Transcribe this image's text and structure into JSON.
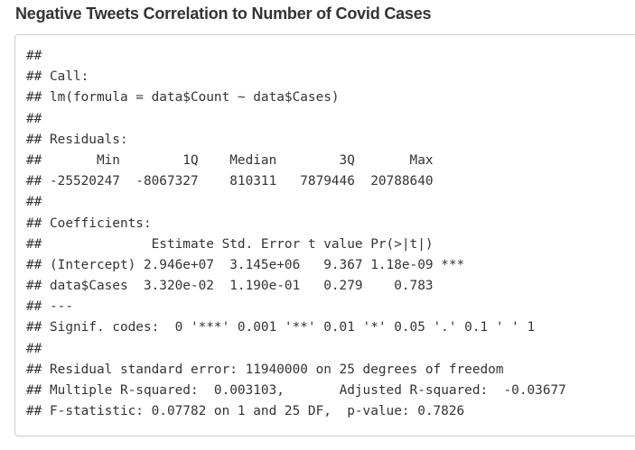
{
  "title": "Negative Tweets Correlation to Number of Covid Cases",
  "output_lines": [
    "##",
    "## Call:",
    "## lm(formula = data$Count ~ data$Cases)",
    "##",
    "## Residuals:",
    "##       Min        1Q    Median        3Q       Max",
    "## -25520247  -8067327    810311   7879446  20788640",
    "##",
    "## Coefficients:",
    "##              Estimate Std. Error t value Pr(>|t|)",
    "## (Intercept) 2.946e+07  3.145e+06   9.367 1.18e-09 ***",
    "## data$Cases  3.320e-02  1.190e-01   0.279    0.783",
    "## ---",
    "## Signif. codes:  0 '***' 0.001 '**' 0.01 '*' 0.05 '.' 0.1 ' ' 1",
    "##",
    "## Residual standard error: 11940000 on 25 degrees of freedom",
    "## Multiple R-squared:  0.003103,\tAdjusted R-squared:  -0.03677",
    "## F-statistic: 0.07782 on 1 and 25 DF,  p-value: 0.7826"
  ]
}
